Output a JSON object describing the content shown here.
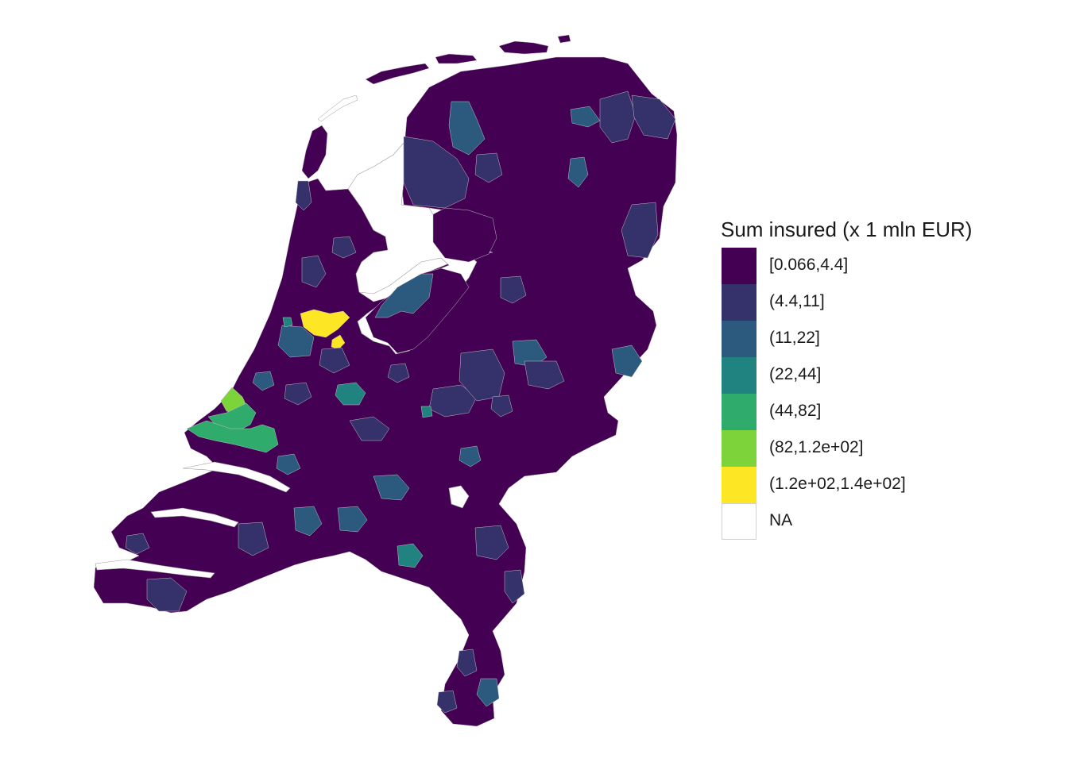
{
  "legend": {
    "title": "Sum insured (x 1 mln EUR)",
    "items": [
      {
        "label": "[0.066,4.4]",
        "color": "#440154"
      },
      {
        "label": "(4.4,11]",
        "color": "#35316B"
      },
      {
        "label": "(11,22]",
        "color": "#2C5A7E"
      },
      {
        "label": "(22,44]",
        "color": "#218380"
      },
      {
        "label": "(44,82]",
        "color": "#2FAB6B"
      },
      {
        "label": "(82,1.2e+02]",
        "color": "#7CD33A"
      },
      {
        "label": "(1.2e+02,1.4e+02]",
        "color": "#FDE725"
      },
      {
        "label": "NA",
        "color": "#FFFFFF"
      }
    ]
  },
  "map": {
    "base_color": "#440154",
    "border_color": "#bfbfbf"
  }
}
